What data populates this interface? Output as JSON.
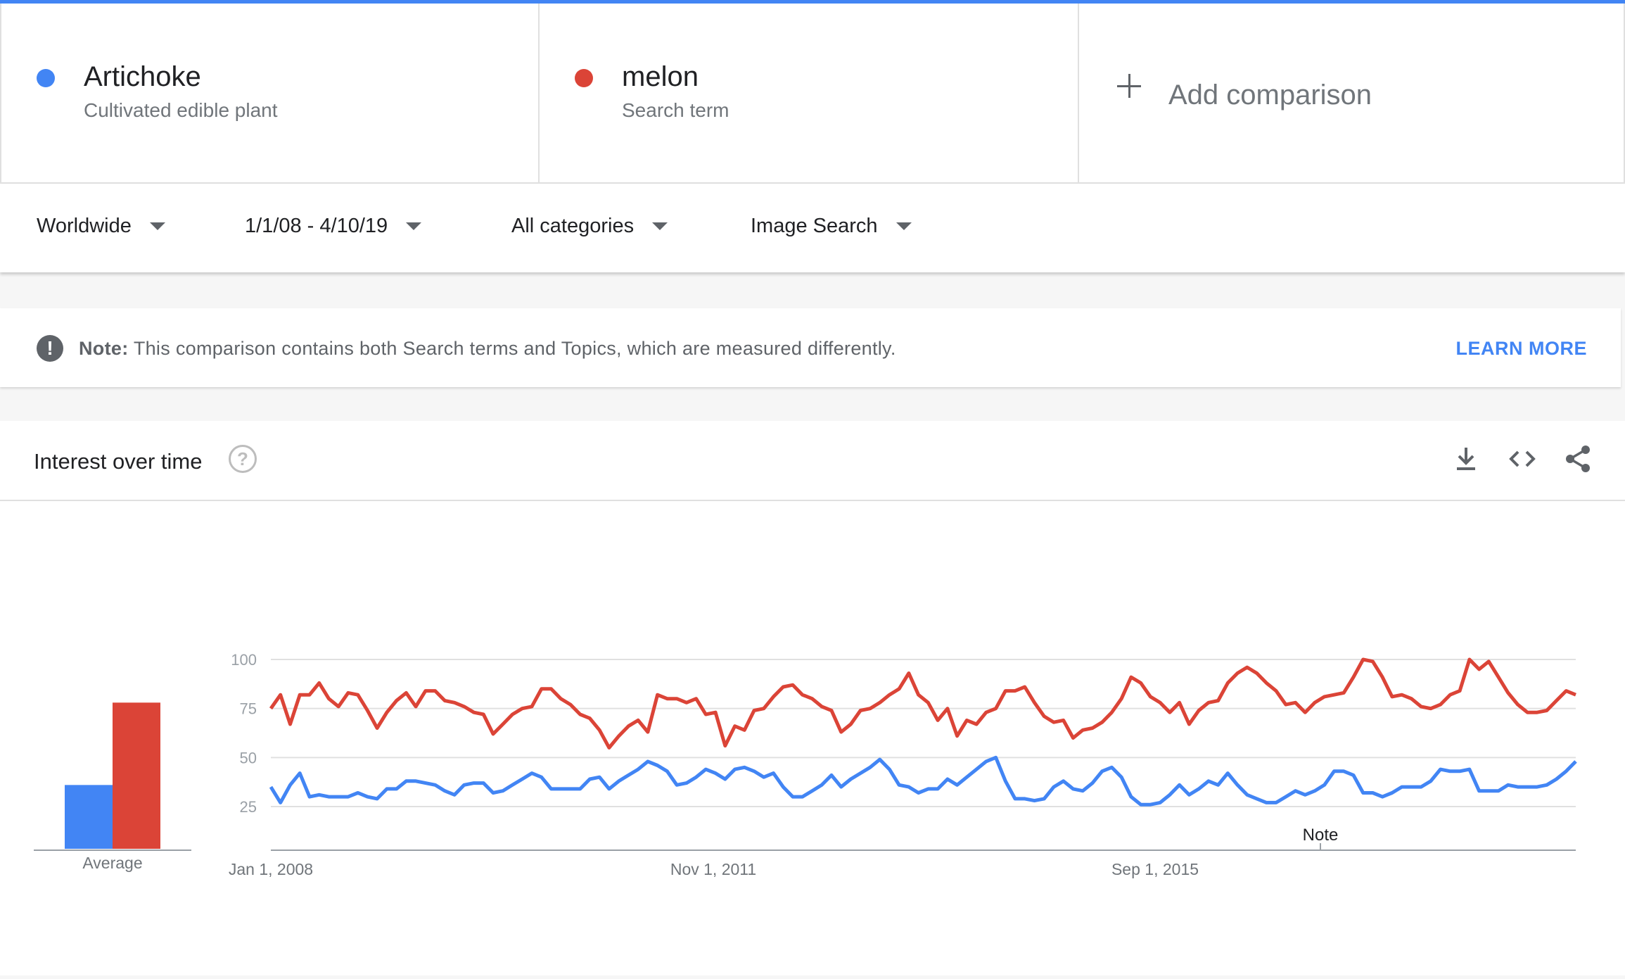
{
  "terms": [
    {
      "name": "Artichoke",
      "subtitle": "Cultivated edible plant",
      "color": "#4285f4"
    },
    {
      "name": "melon",
      "subtitle": "Search term",
      "color": "#db4437"
    }
  ],
  "add_comparison": {
    "label": "Add comparison",
    "icon": "plus-icon"
  },
  "filters": {
    "region": "Worldwide",
    "date_range": "1/1/08 - 4/10/19",
    "category": "All categories",
    "search_type": "Image Search"
  },
  "note": {
    "label": "Note:",
    "text": "This comparison contains both Search terms and Topics, which are measured differently.",
    "link": "LEARN MORE"
  },
  "interest_over_time": {
    "title": "Interest over time",
    "icons": [
      "help-icon",
      "download-icon",
      "embed-icon",
      "share-icon"
    ]
  },
  "chart_data": {
    "type": "line",
    "y_ticks": [
      25,
      50,
      75,
      100
    ],
    "ylim": [
      0,
      100
    ],
    "x_tick_labels": [
      "Jan 1, 2008",
      "Nov 1, 2011",
      "Sep 1, 2015"
    ],
    "annotation": "Note",
    "average": {
      "label": "Average",
      "values": [
        {
          "name": "Artichoke",
          "value": 36
        },
        {
          "name": "melon",
          "value": 78
        }
      ]
    },
    "series": [
      {
        "name": "Artichoke",
        "color": "#4285f4",
        "values": [
          35,
          27,
          36,
          42,
          30,
          31,
          30,
          30,
          30,
          32,
          30,
          29,
          34,
          34,
          38,
          38,
          37,
          36,
          33,
          31,
          36,
          37,
          37,
          32,
          33,
          36,
          39,
          42,
          40,
          34,
          34,
          34,
          34,
          39,
          40,
          34,
          38,
          41,
          44,
          48,
          46,
          43,
          36,
          37,
          40,
          44,
          42,
          39,
          44,
          45,
          43,
          40,
          42,
          35,
          30,
          30,
          33,
          36,
          41,
          35,
          39,
          42,
          45,
          49,
          44,
          36,
          35,
          32,
          34,
          34,
          39,
          36,
          40,
          44,
          48,
          50,
          38,
          29,
          29,
          28,
          29,
          35,
          38,
          34,
          33,
          37,
          43,
          45,
          40,
          30,
          26,
          26,
          27,
          31,
          36,
          31,
          34,
          38,
          36,
          42,
          36,
          31,
          29,
          27,
          27,
          30,
          33,
          31,
          33,
          36,
          43,
          43,
          41,
          32,
          32,
          30,
          32,
          35,
          35,
          35,
          38,
          44,
          43,
          43,
          44,
          33,
          33,
          33,
          36,
          35,
          35,
          35,
          36,
          39,
          43,
          48
        ]
      },
      {
        "name": "melon",
        "color": "#db4437",
        "values": [
          75,
          82,
          67,
          82,
          82,
          88,
          80,
          76,
          83,
          82,
          74,
          65,
          73,
          79,
          83,
          76,
          84,
          84,
          79,
          78,
          76,
          73,
          72,
          62,
          67,
          72,
          75,
          76,
          85,
          85,
          80,
          77,
          72,
          70,
          64,
          55,
          61,
          66,
          69,
          63,
          82,
          80,
          80,
          78,
          80,
          72,
          73,
          56,
          66,
          64,
          74,
          75,
          81,
          86,
          87,
          82,
          80,
          76,
          74,
          63,
          67,
          74,
          75,
          78,
          82,
          85,
          93,
          82,
          78,
          69,
          75,
          61,
          69,
          67,
          73,
          75,
          84,
          84,
          86,
          78,
          71,
          68,
          69,
          60,
          64,
          65,
          68,
          73,
          80,
          91,
          88,
          81,
          78,
          73,
          78,
          67,
          74,
          78,
          79,
          88,
          93,
          96,
          93,
          88,
          84,
          77,
          78,
          73,
          78,
          81,
          82,
          83,
          91,
          100,
          99,
          91,
          81,
          82,
          80,
          76,
          75,
          77,
          82,
          84,
          100,
          95,
          99,
          91,
          83,
          77,
          73,
          73,
          74,
          79,
          84,
          82
        ]
      }
    ]
  }
}
